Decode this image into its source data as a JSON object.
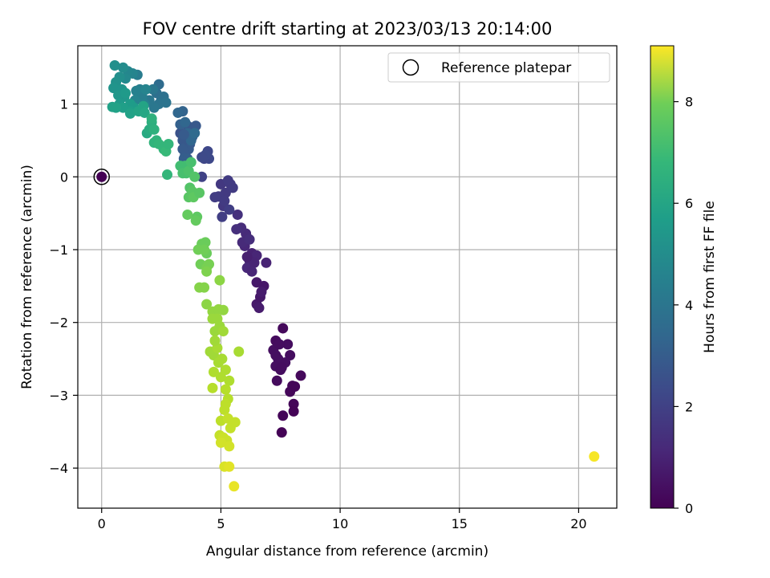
{
  "chart_data": {
    "type": "scatter",
    "title": "FOV centre drift starting at 2023/03/13 20:14:00",
    "xlabel": "Angular distance from reference (arcmin)",
    "ylabel": "Rotation from reference (arcmin)",
    "colorbar_label": "Hours from first FF file",
    "xlim": [
      -1.0,
      21.6
    ],
    "ylim": [
      -4.55,
      1.8
    ],
    "xticks": [
      0,
      5,
      10,
      15,
      20
    ],
    "xtick_labels": [
      "0",
      "5",
      "10",
      "15",
      "20"
    ],
    "yticks": [
      1,
      0,
      -1,
      -2,
      -3,
      -4
    ],
    "ytick_labels": [
      "1",
      "0",
      "−1",
      "−2",
      "−3",
      "−4"
    ],
    "colorbar_range": [
      0,
      9.1
    ],
    "colorbar_ticks": [
      0,
      2,
      4,
      6,
      8
    ],
    "colorbar_tick_labels": [
      "0",
      "2",
      "4",
      "6",
      "8"
    ],
    "colormap": "viridis",
    "grid": true,
    "legend": {
      "position": "top-right",
      "entries": [
        {
          "label": "Reference platepar",
          "marker": "open-circle"
        }
      ]
    },
    "reference_point": {
      "x": 0,
      "y": 0,
      "hours": 0.0
    },
    "points": [
      [
        7.6,
        -2.08,
        0.2
      ],
      [
        7.3,
        -2.25,
        0.25
      ],
      [
        7.8,
        -2.3,
        0.3
      ],
      [
        7.2,
        -2.38,
        0.35
      ],
      [
        7.4,
        -2.5,
        0.4
      ],
      [
        7.9,
        -2.45,
        0.3
      ],
      [
        7.3,
        -2.6,
        0.35
      ],
      [
        7.5,
        -2.65,
        0.3
      ],
      [
        7.35,
        -2.8,
        0.25
      ],
      [
        8.35,
        -2.73,
        0.2
      ],
      [
        8.0,
        -2.87,
        0.15
      ],
      [
        7.9,
        -2.95,
        0.15
      ],
      [
        8.1,
        -2.88,
        0.1
      ],
      [
        8.05,
        -3.12,
        0.1
      ],
      [
        8.05,
        -3.22,
        0.05
      ],
      [
        7.6,
        -3.28,
        0.1
      ],
      [
        7.55,
        -3.51,
        0.05
      ],
      [
        7.45,
        -2.3,
        0.3
      ],
      [
        7.7,
        -2.55,
        0.35
      ],
      [
        6.5,
        -1.45,
        0.6
      ],
      [
        6.8,
        -1.5,
        0.55
      ],
      [
        6.5,
        -1.75,
        0.65
      ],
      [
        6.65,
        -1.65,
        0.6
      ],
      [
        6.7,
        -1.58,
        0.7
      ],
      [
        6.6,
        -1.8,
        0.7
      ],
      [
        6.3,
        -1.05,
        0.85
      ],
      [
        6.5,
        -1.08,
        0.95
      ],
      [
        6.9,
        -1.18,
        0.9
      ],
      [
        6.2,
        -1.15,
        0.9
      ],
      [
        6.0,
        -0.95,
        1.0
      ],
      [
        6.1,
        -1.25,
        1.0
      ],
      [
        6.4,
        -1.18,
        0.9
      ],
      [
        6.05,
        -0.78,
        1.1
      ],
      [
        5.9,
        -0.9,
        1.1
      ],
      [
        5.85,
        -0.7,
        1.15
      ],
      [
        6.2,
        -0.86,
        1.2
      ],
      [
        5.65,
        -0.72,
        1.25
      ],
      [
        5.7,
        -0.52,
        1.3
      ],
      [
        5.0,
        -0.1,
        1.5
      ],
      [
        5.2,
        -0.22,
        1.55
      ],
      [
        5.4,
        -0.1,
        1.55
      ],
      [
        5.1,
        -0.4,
        1.5
      ],
      [
        5.5,
        -0.15,
        1.6
      ],
      [
        4.9,
        -0.27,
        1.6
      ],
      [
        4.75,
        -0.28,
        1.65
      ],
      [
        5.05,
        -0.55,
        1.7
      ],
      [
        5.35,
        -0.45,
        1.7
      ],
      [
        5.15,
        -0.33,
        1.6
      ],
      [
        5.3,
        -0.05,
        1.6
      ],
      [
        4.2,
        0.0,
        1.8
      ],
      [
        4.3,
        0.25,
        1.9
      ],
      [
        4.45,
        0.35,
        2.0
      ],
      [
        4.5,
        0.25,
        2.0
      ],
      [
        4.35,
        0.3,
        2.1
      ],
      [
        4.2,
        0.27,
        2.05
      ],
      [
        3.3,
        0.6,
        2.3
      ],
      [
        3.5,
        0.55,
        2.4
      ],
      [
        3.6,
        0.7,
        2.4
      ],
      [
        3.4,
        0.5,
        2.5
      ],
      [
        3.55,
        0.42,
        2.5
      ],
      [
        3.7,
        0.45,
        2.5
      ],
      [
        3.8,
        0.55,
        2.5
      ],
      [
        3.65,
        0.38,
        2.6
      ],
      [
        3.5,
        0.3,
        2.6
      ],
      [
        3.4,
        0.38,
        2.6
      ],
      [
        3.85,
        0.65,
        2.5
      ],
      [
        3.95,
        0.7,
        2.5
      ],
      [
        3.45,
        0.25,
        2.7
      ],
      [
        3.6,
        0.25,
        2.7
      ],
      [
        3.3,
        0.72,
        2.8
      ],
      [
        3.4,
        0.9,
        2.9
      ],
      [
        3.2,
        0.88,
        3.0
      ],
      [
        3.5,
        0.75,
        3.0
      ],
      [
        3.6,
        0.6,
        3.0
      ],
      [
        3.75,
        0.5,
        3.0
      ],
      [
        3.9,
        0.6,
        3.1
      ],
      [
        2.4,
        1.27,
        3.2
      ],
      [
        2.3,
        1.15,
        3.3
      ],
      [
        2.6,
        1.1,
        3.4
      ],
      [
        2.5,
        1.05,
        3.4
      ],
      [
        2.4,
        1.0,
        3.5
      ],
      [
        2.7,
        1.02,
        3.5
      ],
      [
        2.2,
        0.95,
        3.6
      ],
      [
        2.0,
        1.05,
        3.6
      ],
      [
        2.15,
        1.2,
        3.6
      ],
      [
        1.5,
        1.4,
        3.8
      ],
      [
        1.6,
        1.2,
        3.9
      ],
      [
        1.7,
        1.1,
        3.9
      ],
      [
        1.8,
        1.0,
        4.0
      ],
      [
        1.45,
        1.18,
        4.0
      ],
      [
        1.4,
        1.05,
        4.1
      ],
      [
        1.85,
        1.2,
        4.1
      ],
      [
        1.3,
        1.42,
        4.1
      ],
      [
        1.1,
        1.45,
        4.2
      ],
      [
        1.0,
        1.35,
        4.3
      ],
      [
        0.9,
        1.5,
        4.4
      ],
      [
        0.55,
        1.53,
        4.5
      ],
      [
        0.75,
        1.37,
        4.5
      ],
      [
        0.6,
        1.3,
        4.6
      ],
      [
        0.5,
        1.22,
        4.7
      ],
      [
        0.85,
        1.2,
        4.7
      ],
      [
        0.95,
        1.1,
        4.8
      ],
      [
        0.7,
        1.12,
        4.8
      ],
      [
        0.75,
        1.0,
        4.9
      ],
      [
        1.0,
        1.15,
        4.9
      ],
      [
        1.2,
        1.0,
        5.0
      ],
      [
        1.35,
        0.95,
        5.0
      ],
      [
        1.2,
        0.9,
        5.1
      ],
      [
        0.9,
        0.95,
        5.1
      ],
      [
        0.6,
        0.95,
        5.2
      ],
      [
        0.45,
        0.96,
        5.2
      ],
      [
        1.2,
        0.87,
        5.2
      ],
      [
        1.55,
        0.9,
        5.3
      ],
      [
        1.75,
        0.97,
        5.3
      ],
      [
        1.8,
        0.88,
        5.4
      ],
      [
        1.9,
        0.6,
        5.5
      ],
      [
        2.0,
        0.65,
        5.6
      ],
      [
        2.1,
        0.75,
        5.7
      ],
      [
        2.1,
        0.8,
        5.8
      ],
      [
        2.2,
        0.65,
        5.8
      ],
      [
        2.3,
        0.5,
        5.9
      ],
      [
        2.2,
        0.47,
        5.9
      ],
      [
        2.4,
        0.45,
        6.0
      ],
      [
        2.6,
        0.38,
        6.0
      ],
      [
        2.7,
        0.35,
        6.1
      ],
      [
        2.8,
        0.45,
        6.0
      ],
      [
        2.75,
        0.03,
        6.0
      ],
      [
        3.3,
        0.15,
        6.3
      ],
      [
        3.5,
        0.15,
        6.3
      ],
      [
        3.4,
        0.05,
        6.4
      ],
      [
        3.55,
        0.05,
        6.4
      ],
      [
        3.65,
        0.08,
        6.5
      ],
      [
        3.75,
        0.2,
        6.4
      ],
      [
        3.9,
        0.0,
        6.6
      ],
      [
        3.7,
        -0.15,
        6.6
      ],
      [
        3.8,
        -0.2,
        6.7
      ],
      [
        3.65,
        -0.28,
        6.7
      ],
      [
        3.85,
        -0.28,
        6.8
      ],
      [
        4.0,
        -0.55,
        6.8
      ],
      [
        3.6,
        -0.52,
        6.9
      ],
      [
        3.95,
        -0.6,
        6.9
      ],
      [
        4.2,
        -0.92,
        7.0
      ],
      [
        4.35,
        -0.9,
        7.0
      ],
      [
        4.4,
        -1.05,
        7.0
      ],
      [
        4.05,
        -1.0,
        7.1
      ],
      [
        4.15,
        -1.2,
        7.1
      ],
      [
        4.4,
        -1.25,
        7.2
      ],
      [
        4.5,
        -1.2,
        7.2
      ],
      [
        4.4,
        -1.3,
        7.3
      ],
      [
        4.1,
        -1.52,
        7.4
      ],
      [
        4.3,
        -1.52,
        7.4
      ],
      [
        4.95,
        -1.42,
        7.5
      ],
      [
        4.4,
        -1.75,
        7.5
      ],
      [
        4.65,
        -1.85,
        7.6
      ],
      [
        4.9,
        -1.82,
        7.6
      ],
      [
        5.1,
        -1.83,
        7.6
      ],
      [
        4.65,
        -1.95,
        7.7
      ],
      [
        4.85,
        -1.95,
        7.7
      ],
      [
        4.75,
        -2.12,
        7.7
      ],
      [
        4.95,
        -2.05,
        7.7
      ],
      [
        5.1,
        -2.12,
        7.8
      ],
      [
        4.55,
        -2.4,
        7.8
      ],
      [
        4.7,
        -2.45,
        7.8
      ],
      [
        4.85,
        -2.35,
        7.9
      ],
      [
        5.05,
        -2.5,
        7.9
      ],
      [
        4.9,
        -2.55,
        7.9
      ],
      [
        5.75,
        -2.4,
        7.9
      ],
      [
        5.2,
        -2.65,
        8.0
      ],
      [
        4.7,
        -2.68,
        8.0
      ],
      [
        5.35,
        -2.8,
        8.0
      ],
      [
        5.0,
        -2.75,
        8.0
      ],
      [
        4.65,
        -2.9,
        8.1
      ],
      [
        5.2,
        -2.92,
        8.1
      ],
      [
        5.3,
        -3.05,
        8.1
      ],
      [
        5.2,
        -3.12,
        8.2
      ],
      [
        5.15,
        -3.2,
        8.2
      ],
      [
        5.0,
        -3.35,
        8.2
      ],
      [
        5.3,
        -3.32,
        8.3
      ],
      [
        5.6,
        -3.37,
        8.3
      ],
      [
        4.95,
        -3.55,
        8.3
      ],
      [
        5.1,
        -3.58,
        8.4
      ],
      [
        5.25,
        -3.62,
        8.4
      ],
      [
        5.35,
        -3.7,
        8.5
      ],
      [
        5.0,
        -3.65,
        8.5
      ],
      [
        5.15,
        -3.98,
        8.6
      ],
      [
        5.35,
        -3.98,
        8.7
      ],
      [
        5.55,
        -4.25,
        8.8
      ],
      [
        20.65,
        -3.84,
        9.0
      ],
      [
        6.1,
        -1.1,
        0.8
      ],
      [
        6.3,
        -1.3,
        0.95
      ],
      [
        7.55,
        -2.62,
        0.3
      ],
      [
        7.3,
        -2.45,
        0.35
      ],
      [
        4.1,
        -0.22,
        6.7
      ],
      [
        4.3,
        -1.0,
        7.1
      ],
      [
        4.75,
        -2.25,
        7.8
      ],
      [
        5.4,
        -3.45,
        8.3
      ],
      [
        3.45,
        0.58,
        2.6
      ]
    ]
  }
}
